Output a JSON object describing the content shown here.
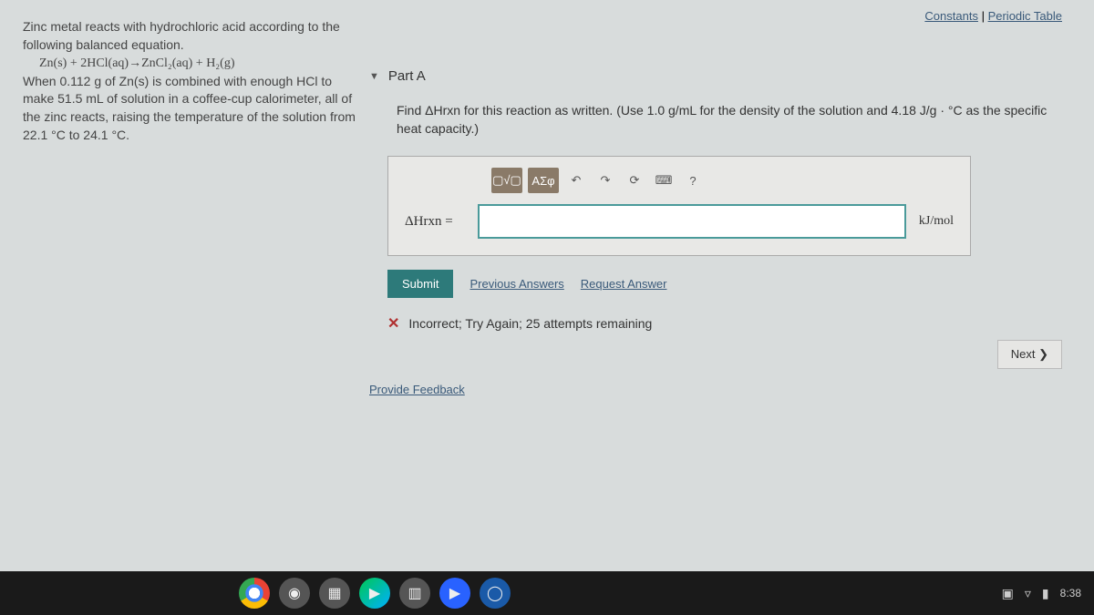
{
  "topLinks": {
    "constants": "Constants",
    "periodic": "Periodic Table"
  },
  "problem": {
    "line1": "Zinc metal reacts with hydrochloric acid according to the following balanced equation.",
    "equation": "Zn(s) + 2HCl(aq)→ZnCl₂(aq) + H₂(g)",
    "line2": "When 0.112 g of Zn(s) is combined with enough HCl to make 51.5 mL of solution in a coffee-cup calorimeter, all of the zinc reacts, raising the temperature of the solution from 22.1 °C to 24.1 °C."
  },
  "part": {
    "label": "Part A"
  },
  "question": "Find ΔHrxn for this reaction as written. (Use 1.0 g/mL for the density of the solution and 4.18 J/g · °C as the specific heat capacity.)",
  "toolbar": {
    "template": "▢√▢",
    "greek": "ΑΣφ",
    "undo": "↶",
    "redo": "↷",
    "reset": "⟳",
    "keyboard": "⌨",
    "help": "?"
  },
  "answer": {
    "label": "ΔHrxn =",
    "value": "",
    "unit": "kJ/mol"
  },
  "buttons": {
    "submit": "Submit",
    "previous": "Previous Answers",
    "request": "Request Answer"
  },
  "feedback": {
    "x": "✕",
    "msg": "Incorrect; Try Again; 25 attempts remaining"
  },
  "provideFeedback": "Provide Feedback",
  "next": "Next ❯",
  "taskbar": {
    "time": "8:38",
    "wifi": "▿",
    "battery": "▮"
  }
}
